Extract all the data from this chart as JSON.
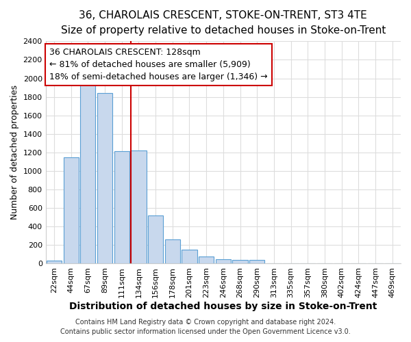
{
  "title": "36, CHAROLAIS CRESCENT, STOKE-ON-TRENT, ST3 4TE",
  "subtitle": "Size of property relative to detached houses in Stoke-on-Trent",
  "xlabel": "Distribution of detached houses by size in Stoke-on-Trent",
  "ylabel": "Number of detached properties",
  "categories": [
    "22sqm",
    "44sqm",
    "67sqm",
    "89sqm",
    "111sqm",
    "134sqm",
    "156sqm",
    "178sqm",
    "201sqm",
    "223sqm",
    "246sqm",
    "268sqm",
    "290sqm",
    "313sqm",
    "335sqm",
    "357sqm",
    "380sqm",
    "402sqm",
    "424sqm",
    "447sqm",
    "469sqm"
  ],
  "values": [
    30,
    1150,
    1950,
    1840,
    1215,
    1220,
    520,
    265,
    150,
    80,
    50,
    40,
    40,
    5,
    5,
    5,
    2,
    2,
    2,
    2,
    2
  ],
  "bar_color": "#c8d8ed",
  "bar_edge_color": "#5a9fd4",
  "bar_width": 0.9,
  "ylim": [
    0,
    2400
  ],
  "yticks": [
    0,
    200,
    400,
    600,
    800,
    1000,
    1200,
    1400,
    1600,
    1800,
    2000,
    2200,
    2400
  ],
  "red_line_index": 5,
  "red_line_color": "#cc0000",
  "annotation_line1": "36 CHAROLAIS CRESCENT: 128sqm",
  "annotation_line2": "← 81% of detached houses are smaller (5,909)",
  "annotation_line3": "18% of semi-detached houses are larger (1,346) →",
  "annotation_box_color": "#ffffff",
  "annotation_box_edge_color": "#cc0000",
  "footer_line1": "Contains HM Land Registry data © Crown copyright and database right 2024.",
  "footer_line2": "Contains public sector information licensed under the Open Government Licence v3.0.",
  "bg_color": "#ffffff",
  "plot_bg_color": "#ffffff",
  "grid_color": "#dddddd",
  "title_fontsize": 11,
  "subtitle_fontsize": 10,
  "xlabel_fontsize": 10,
  "ylabel_fontsize": 9,
  "tick_fontsize": 8,
  "footer_fontsize": 7,
  "annotation_fontsize": 9
}
